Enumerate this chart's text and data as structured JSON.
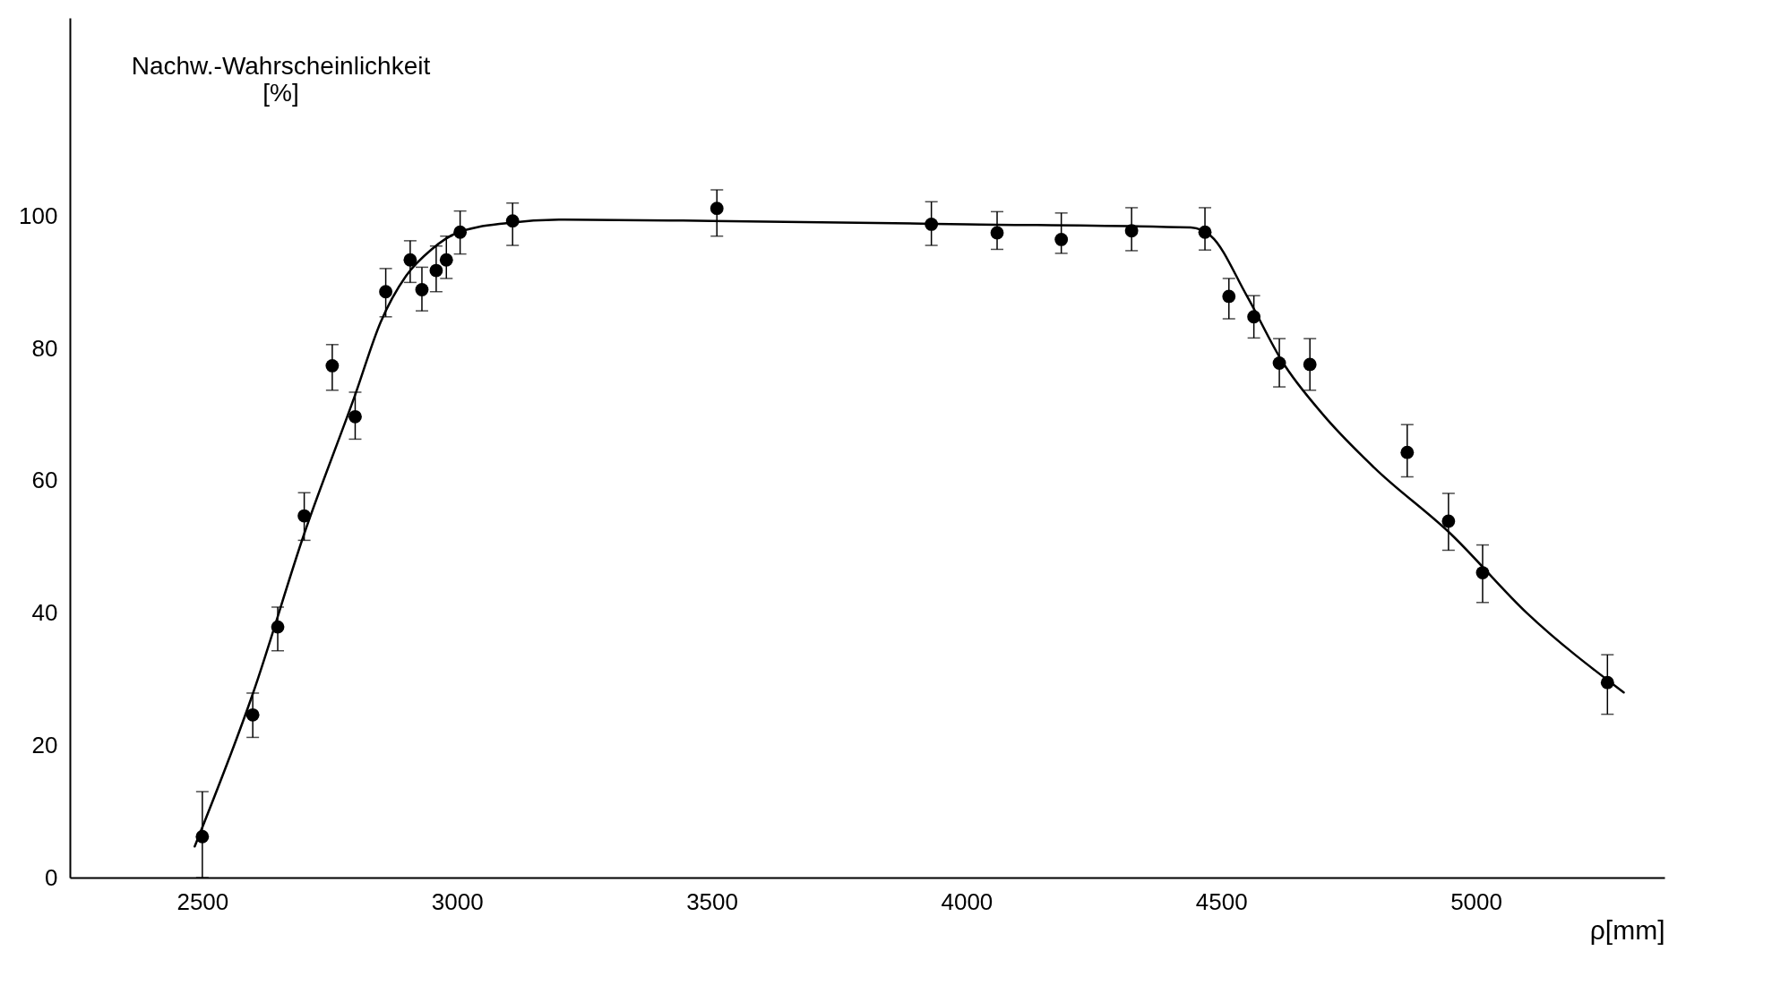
{
  "chart_data": {
    "type": "scatter",
    "xlabel": "ρ[mm]",
    "ylabel": "Nachw.-Wahrscheinlichkeit\n[%]",
    "xlim": [
      2240,
      5370
    ],
    "ylim": [
      0,
      130
    ],
    "xticks": [
      2500,
      3000,
      3500,
      4000,
      4500,
      5000
    ],
    "yticks": [
      0,
      20,
      40,
      60,
      80,
      100
    ],
    "grid": false,
    "series": [
      {
        "marker": "circle",
        "color": "#000000",
        "x": [
          2500,
          2599,
          2648,
          2700,
          2755,
          2800,
          2860,
          2908,
          2931,
          2959,
          2979,
          3006,
          3109,
          3510,
          3931,
          4060,
          4186,
          4324,
          4468,
          4515,
          4564,
          4614,
          4674,
          4865,
          4946,
          5013,
          5258
        ],
        "values": [
          6.2,
          24.6,
          37.9,
          54.7,
          77.4,
          69.7,
          88.6,
          93.4,
          88.9,
          91.8,
          93.4,
          97.6,
          99.3,
          101.2,
          98.8,
          97.5,
          96.5,
          97.8,
          97.6,
          87.9,
          84.8,
          77.8,
          77.6,
          64.3,
          53.9,
          46.1,
          29.5
        ],
        "errors": [
          [
            0,
            13
          ],
          [
            21.2,
            27.9
          ],
          [
            34.3,
            40.9
          ],
          [
            51,
            58.2
          ],
          [
            73.7,
            80.6
          ],
          [
            66.3,
            73.4
          ],
          [
            84.8,
            92.1
          ],
          [
            90,
            96.3
          ],
          [
            85.7,
            92.3
          ],
          [
            88.6,
            95.5
          ],
          [
            90.6,
            97
          ],
          [
            94.3,
            100.8
          ],
          [
            95.6,
            102
          ],
          [
            97,
            104
          ],
          [
            95.6,
            102.2
          ],
          [
            95,
            100.7
          ],
          [
            94.4,
            100.5
          ],
          [
            94.8,
            101.3
          ],
          [
            94.9,
            101.3
          ],
          [
            84.5,
            90.6
          ],
          [
            81.6,
            88
          ],
          [
            74.2,
            81.5
          ],
          [
            73.7,
            81.5
          ],
          [
            60.6,
            68.5
          ],
          [
            49.5,
            58.1
          ],
          [
            41.6,
            50.3
          ],
          [
            24.7,
            33.7
          ]
        ]
      },
      {
        "type": "line",
        "marker": "none",
        "line_style": "solid",
        "color": "#000000",
        "x": [
          2485,
          2600,
          2700,
          2800,
          2850,
          2900,
          2950,
          3000,
          3100,
          3200,
          3500,
          4000,
          4440,
          4480,
          4550,
          4620,
          4700,
          4800,
          4950,
          5100,
          5290
        ],
        "values": [
          4.7,
          28,
          52,
          73,
          84,
          91,
          95,
          97.5,
          99,
          99.5,
          99.3,
          98.8,
          98.3,
          97,
          88,
          78,
          70,
          62,
          52,
          40,
          28
        ]
      }
    ]
  }
}
